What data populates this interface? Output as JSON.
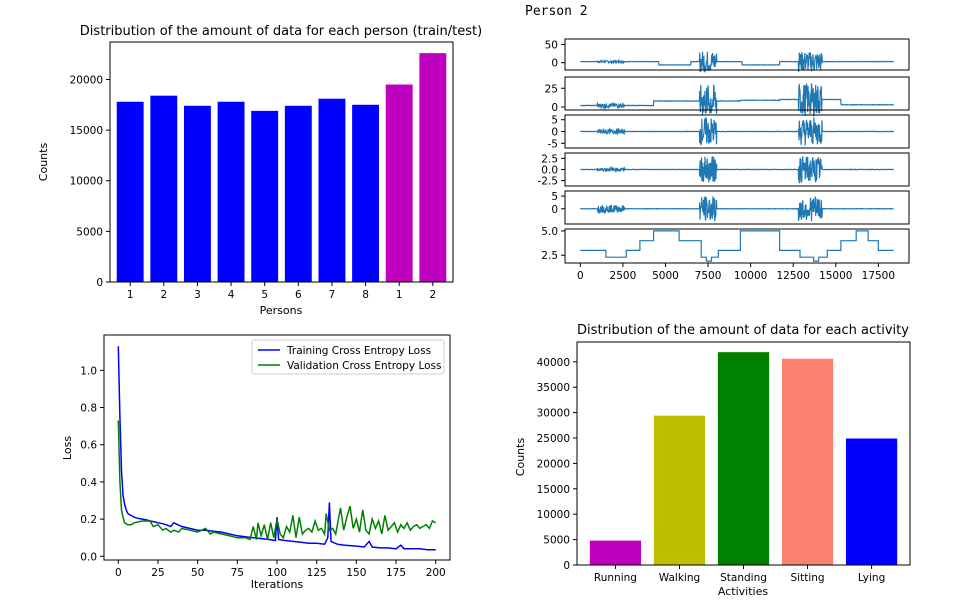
{
  "page": {
    "caption": "Person 2"
  },
  "chart_data": [
    {
      "type": "bar",
      "title": "Distribution of the amount of data for each person (train/test)",
      "xlabel": "Persons",
      "ylabel": "Counts",
      "categories": [
        "1",
        "2",
        "3",
        "4",
        "5",
        "6",
        "7",
        "8",
        "1",
        "2"
      ],
      "values": [
        17800,
        18400,
        17400,
        17800,
        16900,
        17400,
        18100,
        17500,
        19500,
        22600
      ],
      "colors": [
        "#0000ff",
        "#0000ff",
        "#0000ff",
        "#0000ff",
        "#0000ff",
        "#0000ff",
        "#0000ff",
        "#0000ff",
        "#bf00bf",
        "#bf00bf"
      ],
      "yticks": [
        0,
        5000,
        10000,
        15000,
        20000
      ],
      "ylim": [
        0,
        23700
      ]
    },
    {
      "type": "line",
      "xlabel": "",
      "ylabel": "",
      "xticks": [
        0,
        2500,
        5000,
        7500,
        10000,
        12500,
        15000,
        17500
      ],
      "xlim": [
        -900,
        19300
      ],
      "color": "#1f77b4",
      "panels": [
        {
          "yticks": [
            "50",
            "0"
          ],
          "ytick_values": [
            50,
            0
          ],
          "ylim": [
            -20,
            65
          ],
          "kind": "signal",
          "base": [
            3,
            3,
            3,
            3,
            -6,
            -6,
            3,
            3,
            3,
            -6,
            -6,
            3
          ],
          "amp": [
            3,
            1,
            1,
            30,
            1,
            1,
            1,
            28,
            1,
            1
          ],
          "bursts": [
            [
              1000,
              2600,
              3
            ],
            [
              7000,
              8000,
              30
            ],
            [
              12800,
              14200,
              28
            ]
          ]
        },
        {
          "yticks": [
            "25",
            "0"
          ],
          "ytick_values": [
            25,
            0
          ],
          "ylim": [
            -4,
            40
          ],
          "kind": "signal2",
          "bursts": [
            [
              1000,
              2600,
              3
            ],
            [
              7000,
              8000,
              22
            ],
            [
              12800,
              14200,
              22
            ]
          ]
        },
        {
          "yticks": [
            "5",
            "0",
            "-5"
          ],
          "ytick_values": [
            5,
            0,
            -5
          ],
          "ylim": [
            -7,
            7
          ],
          "kind": "centered",
          "bursts": [
            [
              1000,
              2600,
              1
            ],
            [
              7000,
              8000,
              6
            ],
            [
              12800,
              14200,
              6
            ]
          ]
        },
        {
          "yticks": [
            "2.5",
            "0.0",
            "-2.5"
          ],
          "ytick_values": [
            2.5,
            0,
            -2.5
          ],
          "ylim": [
            -3.7,
            3.7
          ],
          "kind": "centered",
          "bursts": [
            [
              1000,
              2600,
              0.4
            ],
            [
              7000,
              8000,
              3
            ],
            [
              12800,
              14200,
              3
            ]
          ]
        },
        {
          "yticks": [
            "5",
            "0"
          ],
          "ytick_values": [
            5,
            0
          ],
          "ylim": [
            -6,
            7
          ],
          "kind": "centered",
          "bursts": [
            [
              1000,
              2600,
              1.5
            ],
            [
              7000,
              8000,
              5
            ],
            [
              12800,
              14200,
              5
            ]
          ]
        },
        {
          "yticks": [
            "5.0",
            "2.5"
          ],
          "ytick_values": [
            5,
            2.5
          ],
          "ylim": [
            1.7,
            5.2
          ],
          "kind": "steps",
          "steps": [
            [
              0,
              3
            ],
            [
              1500,
              3
            ],
            [
              1500,
              2.3
            ],
            [
              2700,
              2.3
            ],
            [
              2700,
              3
            ],
            [
              3500,
              3
            ],
            [
              3500,
              4
            ],
            [
              4300,
              4
            ],
            [
              4300,
              5
            ],
            [
              5800,
              5
            ],
            [
              5800,
              4
            ],
            [
              7100,
              4
            ],
            [
              7100,
              2.3
            ],
            [
              7400,
              2.3
            ],
            [
              7400,
              1.9
            ],
            [
              7700,
              1.9
            ],
            [
              7700,
              2.3
            ],
            [
              8100,
              2.3
            ],
            [
              8100,
              3
            ],
            [
              9400,
              3
            ],
            [
              9400,
              5
            ],
            [
              11700,
              5
            ],
            [
              11700,
              3
            ],
            [
              12900,
              3
            ],
            [
              12900,
              2.3
            ],
            [
              13700,
              2.3
            ],
            [
              13700,
              1.9
            ],
            [
              14000,
              1.9
            ],
            [
              14000,
              2.3
            ],
            [
              14500,
              2.3
            ],
            [
              14500,
              3
            ],
            [
              15300,
              3
            ],
            [
              15300,
              4
            ],
            [
              16200,
              4
            ],
            [
              16200,
              5
            ],
            [
              16900,
              5
            ],
            [
              16900,
              4
            ],
            [
              17500,
              4
            ],
            [
              17500,
              3
            ],
            [
              18400,
              3
            ]
          ]
        }
      ]
    },
    {
      "type": "line",
      "xlabel": "Iterations",
      "ylabel": "Loss",
      "xticks": [
        0,
        25,
        50,
        75,
        100,
        125,
        150,
        175,
        200
      ],
      "yticks": [
        0.0,
        0.2,
        0.4,
        0.6,
        0.8,
        1.0
      ],
      "xlim": [
        -9,
        209
      ],
      "ylim": [
        -0.02,
        1.19
      ],
      "legend": "top-right",
      "series": [
        {
          "name": "Training Cross Entropy Loss",
          "color": "#0000ff",
          "x": [
            0,
            1,
            2,
            3,
            4,
            5,
            6,
            8,
            10,
            12,
            15,
            18,
            20,
            23,
            25,
            28,
            30,
            33,
            35,
            40,
            45,
            50,
            55,
            60,
            65,
            70,
            75,
            80,
            85,
            90,
            95,
            99,
            100,
            101,
            105,
            110,
            115,
            120,
            125,
            130,
            132,
            133,
            134,
            138,
            142,
            150,
            155,
            158,
            160,
            165,
            170,
            175,
            178,
            180,
            185,
            190,
            195,
            200
          ],
          "y": [
            1.13,
            0.75,
            0.46,
            0.33,
            0.28,
            0.25,
            0.23,
            0.22,
            0.21,
            0.205,
            0.2,
            0.195,
            0.19,
            0.185,
            0.18,
            0.175,
            0.17,
            0.16,
            0.18,
            0.16,
            0.15,
            0.14,
            0.14,
            0.135,
            0.13,
            0.12,
            0.11,
            0.105,
            0.1,
            0.095,
            0.09,
            0.085,
            0.21,
            0.09,
            0.085,
            0.08,
            0.075,
            0.07,
            0.07,
            0.065,
            0.1,
            0.29,
            0.08,
            0.065,
            0.06,
            0.055,
            0.05,
            0.08,
            0.05,
            0.045,
            0.045,
            0.04,
            0.06,
            0.04,
            0.04,
            0.04,
            0.035,
            0.035
          ]
        },
        {
          "name": "Validation Cross Entropy Loss",
          "color": "#008000",
          "x": [
            0,
            1,
            2,
            3,
            4,
            6,
            8,
            10,
            15,
            20,
            22,
            25,
            28,
            30,
            33,
            35,
            38,
            40,
            45,
            50,
            55,
            58,
            60,
            65,
            70,
            75,
            80,
            83,
            85,
            87,
            88,
            90,
            92,
            94,
            96,
            98,
            100,
            102,
            104,
            106,
            108,
            110,
            112,
            114,
            116,
            118,
            120,
            122,
            124,
            126,
            128,
            130,
            131,
            133,
            135,
            137,
            140,
            142,
            144,
            146,
            148,
            150,
            152,
            154,
            156,
            158,
            160,
            162,
            164,
            166,
            168,
            170,
            172,
            174,
            176,
            178,
            180,
            182,
            184,
            186,
            188,
            190,
            192,
            194,
            196,
            198,
            200
          ],
          "y": [
            0.73,
            0.4,
            0.25,
            0.21,
            0.18,
            0.17,
            0.17,
            0.18,
            0.19,
            0.19,
            0.16,
            0.17,
            0.14,
            0.15,
            0.13,
            0.14,
            0.13,
            0.15,
            0.14,
            0.13,
            0.15,
            0.12,
            0.13,
            0.12,
            0.11,
            0.1,
            0.1,
            0.09,
            0.16,
            0.09,
            0.18,
            0.11,
            0.17,
            0.09,
            0.18,
            0.1,
            0.2,
            0.12,
            0.1,
            0.16,
            0.13,
            0.22,
            0.1,
            0.21,
            0.12,
            0.14,
            0.15,
            0.13,
            0.19,
            0.14,
            0.15,
            0.12,
            0.23,
            0.14,
            0.15,
            0.12,
            0.26,
            0.14,
            0.21,
            0.27,
            0.15,
            0.2,
            0.13,
            0.25,
            0.14,
            0.12,
            0.2,
            0.15,
            0.19,
            0.12,
            0.22,
            0.14,
            0.16,
            0.18,
            0.13,
            0.17,
            0.15,
            0.18,
            0.14,
            0.16,
            0.17,
            0.15,
            0.16,
            0.17,
            0.15,
            0.19,
            0.18
          ]
        }
      ]
    },
    {
      "type": "bar",
      "title": "Distribution of the amount of data for each activity",
      "xlabel": "Activities",
      "ylabel": "Counts",
      "categories": [
        "Running",
        "Walking",
        "Standing",
        "Sitting",
        "Lying"
      ],
      "values": [
        4800,
        29400,
        41900,
        40600,
        24900
      ],
      "colors": [
        "#bf00bf",
        "#bfbf00",
        "#008000",
        "#fa8072",
        "#0000ff"
      ],
      "yticks": [
        0,
        5000,
        10000,
        15000,
        20000,
        25000,
        30000,
        35000,
        40000
      ],
      "ylim": [
        0,
        43900
      ]
    }
  ]
}
